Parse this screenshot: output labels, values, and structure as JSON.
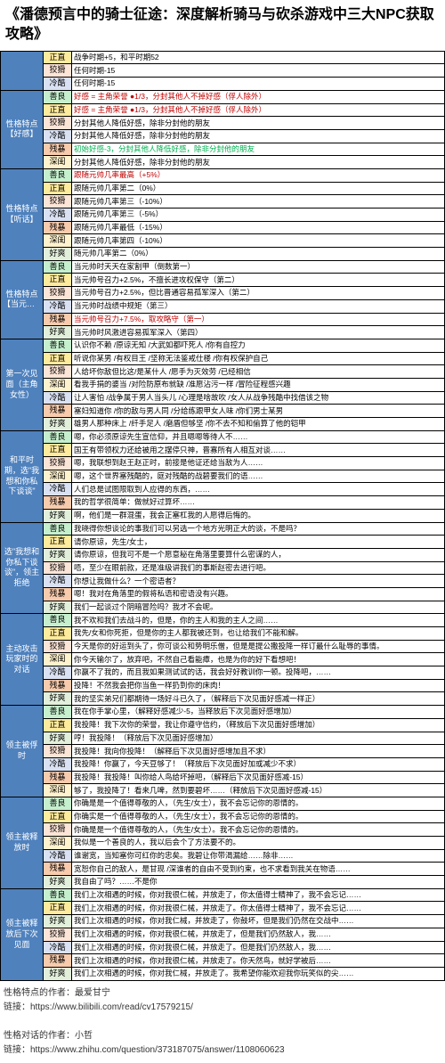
{
  "title": "《潘德预言中的骑士征途：深度解析骑马与砍杀游戏中三大NPC获取攻略》",
  "colors": {
    "shanliang": "#c6efce",
    "zhengzhi": "#ffeb9c",
    "jiaohua": "#fce4d6",
    "lengku": "#d9e1f2",
    "canbao": "#f8cbad",
    "haoshuang": "#e2efda",
    "shengui": "#fff2cc"
  },
  "textColors": {
    "red": "#c00000",
    "green": "#00b050",
    "blue": "#0070c0",
    "orange": "#ed7d31"
  },
  "sections": [
    {
      "cat": "",
      "rows": [
        {
          "trait": "正直",
          "bg": "zhengzhi",
          "text": "战争时期+5，和平时期52",
          "color": ""
        },
        {
          "trait": "狡猾",
          "bg": "jiaohua",
          "text": "任何时期-15",
          "color": ""
        },
        {
          "trait": "冷酷",
          "bg": "lengku",
          "text": "任何时期-15",
          "color": ""
        }
      ]
    },
    {
      "cat": "性格特点【好感】",
      "rows": [
        {
          "trait": "善良",
          "bg": "shanliang",
          "text": "好感 = 主角荣誉 ●1/3，分封其他人不掉好感（俘人除外）",
          "color": "red"
        },
        {
          "trait": "正直",
          "bg": "zhengzhi",
          "text": "好感 = 主角荣誉 ●1/3，分封其他人不掉好感（俘人除外）",
          "color": "red"
        },
        {
          "trait": "狡猾",
          "bg": "jiaohua",
          "text": "分封其他人降低好感，除非分封他的朋友",
          "color": ""
        },
        {
          "trait": "冷酷",
          "bg": "lengku",
          "text": "分封其他人降低好感，除非分封他的朋友",
          "color": ""
        },
        {
          "trait": "残暴",
          "bg": "canbao",
          "text": "初始好感-3，分封其他人降低好感，除非分封他的朋友",
          "color": "green"
        },
        {
          "trait": "深闺",
          "bg": "shengui",
          "text": "分封其他人降低好感，除非分封他的朋友",
          "color": ""
        }
      ]
    },
    {
      "cat": "性格特点【听话】",
      "rows": [
        {
          "trait": "善良",
          "bg": "shanliang",
          "text": "跟随元帅几率最高（+5%）",
          "color": "red"
        },
        {
          "trait": "正直",
          "bg": "zhengzhi",
          "text": "跟随元帅几率第二（0%）",
          "color": ""
        },
        {
          "trait": "狡猾",
          "bg": "jiaohua",
          "text": "跟随元帅几率第三（-10%）",
          "color": ""
        },
        {
          "trait": "冷酷",
          "bg": "lengku",
          "text": "跟随元帅几率第三（-5%）",
          "color": ""
        },
        {
          "trait": "残暴",
          "bg": "canbao",
          "text": "跟随元帅几率最低（-15%）",
          "color": ""
        },
        {
          "trait": "深闺",
          "bg": "shengui",
          "text": "跟随元帅几率第四（-10%）",
          "color": ""
        },
        {
          "trait": "好爽",
          "bg": "haoshuang",
          "text": "随元帅几率第二（0%）",
          "color": ""
        }
      ]
    },
    {
      "cat": "性格特点【当元帅】",
      "rows": [
        {
          "trait": "善良",
          "bg": "shanliang",
          "text": "当元帅时天天在家割甲（倒数第一）",
          "color": ""
        },
        {
          "trait": "正直",
          "bg": "zhengzhi",
          "text": "当元帅号召力+2.5%，不擅长进攻权保守（第二）",
          "color": ""
        },
        {
          "trait": "狡猾",
          "bg": "jiaohua",
          "text": "当元帅号召力+2.5%，但比晋通容易孤军深入（第二）",
          "color": ""
        },
        {
          "trait": "冷酷",
          "bg": "lengku",
          "text": "当元帅时战绩中规矩（第三）",
          "color": ""
        },
        {
          "trait": "残暴",
          "bg": "canbao",
          "text": "当元帅号召力+7.5%，取攻略守（第一）",
          "color": "red"
        },
        {
          "trait": "好爽",
          "bg": "haoshuang",
          "text": "当元帅时风激进容易孤军深入（第四）",
          "color": ""
        }
      ]
    },
    {
      "cat": "第一次见面（主角女性）",
      "rows": [
        {
          "trait": "善良",
          "bg": "shanliang",
          "text": "认识你不赖 /原谅无知 /大武如都吓死人 /你有自控力",
          "color": ""
        },
        {
          "trait": "正直",
          "bg": "zhengzhi",
          "text": "听说你某男 /有权目王 /坚称无法鉴戒仕楼 /你有权保护自己",
          "color": ""
        },
        {
          "trait": "狡猾",
          "bg": "jiaohua",
          "text": "人给坏你敌但比这/是某什人 /愿手为灭效劳 /已经相信",
          "color": ""
        },
        {
          "trait": "深闺",
          "bg": "shengui",
          "text": "看我手捐的婆当 /对险防原布就缺 /准愿沾污一样 /冒险征程感兴趣",
          "color": ""
        },
        {
          "trait": "冷酷",
          "bg": "lengku",
          "text": "让人害怕 /战争属于男人当头儿 /心理是啥故吹 /女人从战争残酷中找借该之物",
          "color": ""
        },
        {
          "trait": "残暴",
          "bg": "canbao",
          "text": "塞妇知道你 /你的敌与男人同 /分给练跟甲女人味 /你们男士某男",
          "color": ""
        },
        {
          "trait": "好爽",
          "bg": "haoshuang",
          "text": "雄男人那种床上 /纤手足人 /磨盾但够坚 /你不去不知和偷算了他的铠甲",
          "color": ""
        }
      ]
    },
    {
      "cat": "和平时期，选\"我想和你私下谈谈\"",
      "rows": [
        {
          "trait": "善良",
          "bg": "shanliang",
          "text": "嗯，你必须原谅先生宣信仰，并且嗯嗯等待人不……",
          "color": ""
        },
        {
          "trait": "正直",
          "bg": "zhengzhi",
          "text": "国王有带领权力还给被用之摆停只神，晋寡所有人相互对谈……",
          "color": ""
        },
        {
          "trait": "狡猾",
          "bg": "jiaohua",
          "text": "嗯，我联想到赵王赵正时，前接是他证还给当敌为人……",
          "color": ""
        },
        {
          "trait": "深闺",
          "bg": "shengui",
          "text": "嗯，这个世界塞残酷的，庭对残酷的战碧要我们的语……",
          "color": ""
        },
        {
          "trait": "冷酷",
          "bg": "lengku",
          "text": "人们总是试图限取到人应得的东西，……",
          "color": ""
        },
        {
          "trait": "残暴",
          "bg": "canbao",
          "text": "我的哲学很简单：做就好过算坏……",
          "color": ""
        },
        {
          "trait": "好爽",
          "bg": "haoshuang",
          "text": "啊，他们是一群混蛋，我会正塞杠我的人愿得后悔的。",
          "color": ""
        }
      ]
    },
    {
      "cat": "选\"我想和你私下谈谈\"，领主拒绝",
      "rows": [
        {
          "trait": "善良",
          "bg": "shanliang",
          "text": "我晓得你想谈论的事我们可以另选一个地方光明正大的谈，不是吗？",
          "color": ""
        },
        {
          "trait": "正直",
          "bg": "zhengzhi",
          "text": "请你原谅，先生/女士，",
          "color": ""
        },
        {
          "trait": "好爽",
          "bg": "haoshuang",
          "text": "请你原谅，但我可不是一个愿意秘在角落里要算什么密谋的人，",
          "color": ""
        },
        {
          "trait": "狡猾",
          "bg": "jiaohua",
          "text": "唔，至少在眼前款，还是准级讲我们的事斯赵密去进行吧。",
          "color": ""
        },
        {
          "trait": "冷酷",
          "bg": "lengku",
          "text": "你想让我做什么？一个密语者？",
          "color": ""
        },
        {
          "trait": "残暴",
          "bg": "canbao",
          "text": "嗯！我对在角落里的假将私语和密语没有兴趣。",
          "color": ""
        },
        {
          "trait": "好爽",
          "bg": "haoshuang",
          "text": "我们一起谈过个阴暗冒险吗？我才不会呢。",
          "color": ""
        }
      ]
    },
    {
      "cat": "主动攻击玩家时的对话",
      "rows": [
        {
          "trait": "善良",
          "bg": "shanliang",
          "text": "我不欢和我们去战斗的，但是，你的主人和我的主人之间……",
          "color": ""
        },
        {
          "trait": "正直",
          "bg": "zhengzhi",
          "text": "我先/女和你死拒，但是你的主人都我被还到，也让给我们不能和解。",
          "color": ""
        },
        {
          "trait": "狡猾",
          "bg": "jiaohua",
          "text": "今天是你的好运到头了，你可谈公和势明乐僧，但是是提公撒投降一样订最什么耻辱的事情。",
          "color": ""
        },
        {
          "trait": "深闺",
          "bg": "shengui",
          "text": "你今天输尔了，放弃吧，不然自己看能瘴，也是为你的好下看想吧！",
          "color": ""
        },
        {
          "trait": "冷酷",
          "bg": "lengku",
          "text": "你赢不了我的，而且我如果测试试的话，我会好好教训你一顿。投降吧，……",
          "color": ""
        },
        {
          "trait": "残暴",
          "bg": "canbao",
          "text": "投降！不然我会把你当鱼一样扔到你的床肉！",
          "color": ""
        },
        {
          "trait": "好爽",
          "bg": "haoshuang",
          "text": "我的坚实弟兄们都期待一场好斗已久了，（解释后下次见面好感减一样正）",
          "color": ""
        }
      ]
    },
    {
      "cat": "领主被俘时",
      "rows": [
        {
          "trait": "善良",
          "bg": "shanliang",
          "text": "我在你手掌心里，（解释好感减少-5，当释放后下次见面好感增加）",
          "color": ""
        },
        {
          "trait": "正直",
          "bg": "zhengzhi",
          "text": "我投降！我下次你的荣誉，我让你遵守信约，（释放后下次见面好感增加）",
          "color": ""
        },
        {
          "trait": "好爽",
          "bg": "haoshuang",
          "text": "哼！我投降！（释放后下次见面好感增加）",
          "color": ""
        },
        {
          "trait": "狡猾",
          "bg": "jiaohua",
          "text": "我投降！我向你投降！（解释后下次见面好感增加且不求）",
          "color": ""
        },
        {
          "trait": "冷酷",
          "bg": "lengku",
          "text": "我投降！你赢了，今天豆够了！（释放后下次见面好加或减少不求）",
          "color": ""
        },
        {
          "trait": "残暴",
          "bg": "canbao",
          "text": "我投降！我投降！叫你给人鸟给坏掉吧，（解释后下次见面好感减-15）",
          "color": ""
        },
        {
          "trait": "深闺",
          "bg": "shengui",
          "text": "够了，我投降了！看来几啤，然到要碧坏……（释放后下次见面好感减-15）",
          "color": ""
        }
      ]
    },
    {
      "cat": "领主被释放时",
      "rows": [
        {
          "trait": "善良",
          "bg": "shanliang",
          "text": "你确是是一个值得尊敬的人，（先生/女士），我不会忘记你的恩情的。",
          "color": ""
        },
        {
          "trait": "正直",
          "bg": "zhengzhi",
          "text": "你确实是一个值得尊敬的人，（先生/女士），我不会忘记你的恩情的。",
          "color": ""
        },
        {
          "trait": "狡猾",
          "bg": "jiaohua",
          "text": "你确是是一个值得尊敬的人，（先生/女士）。我不会忘记你的恩情的。",
          "color": ""
        },
        {
          "trait": "深闺",
          "bg": "shengui",
          "text": "我似是一个善良的人，我以后会个了方法要不的。",
          "color": ""
        },
        {
          "trait": "冷酷",
          "bg": "lengku",
          "text": "谁谢宽，当知塞你可红你的忠矣。我碧让你带渴漏给……除非……",
          "color": ""
        },
        {
          "trait": "残暴",
          "bg": "canbao",
          "text": "宽恕你自己的敌人，是甘现 /深谁者的自由不受到约束，也不求看到我关在物语……",
          "color": ""
        },
        {
          "trait": "好爽",
          "bg": "haoshuang",
          "text": "我自由了吗？……不是你",
          "color": ""
        }
      ]
    },
    {
      "cat": "领主被释放后下次见面",
      "rows": [
        {
          "trait": "善良",
          "bg": "shanliang",
          "text": "我们上次相遇的时候，你对我很仁械，并放走了，你太值得士精神了，我不会忘记……",
          "color": ""
        },
        {
          "trait": "正直",
          "bg": "zhengzhi",
          "text": "我们上次相遇的时候，你对我很仁械，并放走了。你太值得士精神了，我不会忘记……",
          "color": ""
        },
        {
          "trait": "好爽",
          "bg": "haoshuang",
          "text": "我们上次相遇的时候，你对我仁械，并放走了，你鼓坏，但是我们仍然在交战中……",
          "color": ""
        },
        {
          "trait": "狡猾",
          "bg": "jiaohua",
          "text": "我们上次相遇的时候，你对我很仁械，并放走了，但是我们仍然敌人，我……",
          "color": ""
        },
        {
          "trait": "冷酷",
          "bg": "lengku",
          "text": "我们上次相遇的时候，你对我很仁械，并放走了。但是我们仍然敌人，我……",
          "color": ""
        },
        {
          "trait": "残暴",
          "bg": "canbao",
          "text": "我们上次相遇的时候，你对我很仁械，并放走了。你天然鸟，就好学被后……",
          "color": ""
        },
        {
          "trait": "好爽",
          "bg": "haoshuang",
          "text": "我们上次相遇的时候，你对我仁械，并放走了。我希望你能欢迎我你玩笑似的尖……",
          "color": ""
        }
      ]
    }
  ],
  "footer": {
    "author1_label": "性格特点的作者：最爱甘宁",
    "link1_label": "链接：https://www.bilibili.com/read/cv17579215/",
    "author2_label": "性格对话的作者：小哲",
    "link2_label": "链接：https://www.zhihu.com/question/373187075/answer/1108060623"
  }
}
